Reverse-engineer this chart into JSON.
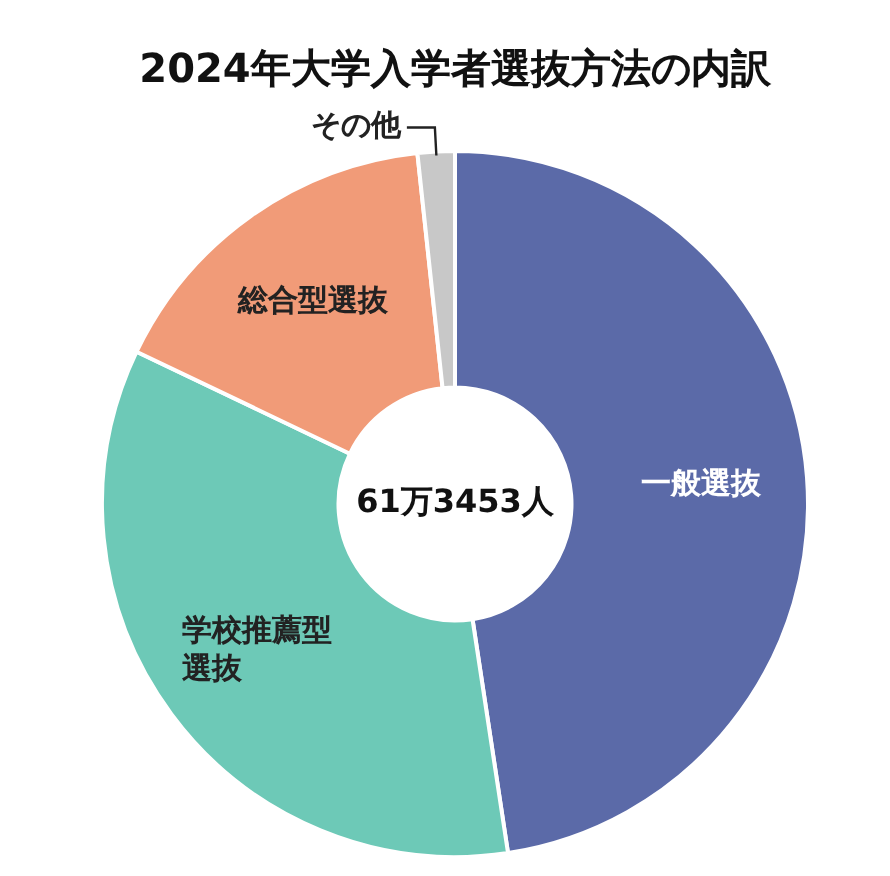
{
  "chart_data": {
    "type": "donut",
    "title": "2024年大学入学者選抜方法の内訳",
    "categories": [
      "一般選抜",
      "学校推薦型選抜",
      "総合型選抜",
      "その他"
    ],
    "values": [
      47.6,
      34.5,
      16.2,
      1.7
    ],
    "colors": [
      "#5b6aa8",
      "#6dc9b7",
      "#f19b78",
      "#c8c8c8"
    ],
    "annotations": [
      "61万3453人"
    ],
    "legend": false
  }
}
